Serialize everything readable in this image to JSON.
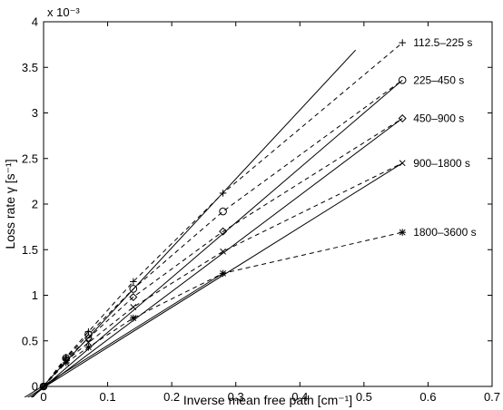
{
  "chart_data": {
    "type": "line",
    "title": "",
    "xlabel": "Inverse mean free path [cm⁻¹]",
    "ylabel": "Loss rate γ [s⁻¹]",
    "y_exponent_label": "x 10⁻³",
    "xlim": [
      0,
      0.7
    ],
    "ylim": [
      0,
      4
    ],
    "x_ticks": [
      0,
      0.1,
      0.2,
      0.3,
      0.4,
      0.5,
      0.6,
      0.7
    ],
    "x_tick_labels": [
      "0",
      "0.1",
      "0.2",
      "0.3",
      "0.4",
      "0.5",
      "0.6",
      "0.7"
    ],
    "y_ticks": [
      0,
      0.5,
      1,
      1.5,
      2,
      2.5,
      3,
      3.5,
      4
    ],
    "y_tick_labels": [
      "0",
      "0.5",
      "1",
      "1.5",
      "2",
      "2.5",
      "3",
      "3.5",
      "4"
    ],
    "y_units_scale": 0.001,
    "grid": false,
    "legend": "inline labels at right end of each series",
    "x": [
      0,
      0.035,
      0.07,
      0.14,
      0.28,
      0.56
    ],
    "series": [
      {
        "name": "112.5–225 s",
        "marker": "plus",
        "values": [
          0,
          0.32,
          0.6,
          1.15,
          2.12,
          3.77
        ],
        "fit": {
          "x": [
            -0.05,
            0.487
          ],
          "y": [
            -0.37,
            3.69
          ]
        }
      },
      {
        "name": "225–450 s",
        "marker": "circle",
        "values": [
          0,
          0.31,
          0.57,
          1.07,
          1.92,
          3.36
        ],
        "fit": {
          "x": [
            -0.035,
            0.56
          ],
          "y": [
            -0.22,
            3.36
          ]
        }
      },
      {
        "name": "450–900 s",
        "marker": "diamond",
        "values": [
          0,
          0.3,
          0.53,
          0.98,
          1.7,
          2.94
        ],
        "fit": {
          "x": [
            -0.035,
            0.56
          ],
          "y": [
            -0.2,
            2.94
          ]
        }
      },
      {
        "name": "900–1800 s",
        "marker": "x",
        "values": [
          0,
          0.28,
          0.48,
          0.87,
          1.48,
          2.45
        ],
        "fit": {
          "x": [
            -0.045,
            0.56
          ],
          "y": [
            -0.21,
            2.45
          ]
        }
      },
      {
        "name": "1800–3600 s",
        "marker": "asterisk",
        "values": [
          0,
          0.26,
          0.43,
          0.75,
          1.24,
          1.69
        ],
        "fit": {
          "x": [
            -0.05,
            0.28
          ],
          "y": [
            -0.21,
            1.24
          ]
        }
      }
    ]
  }
}
